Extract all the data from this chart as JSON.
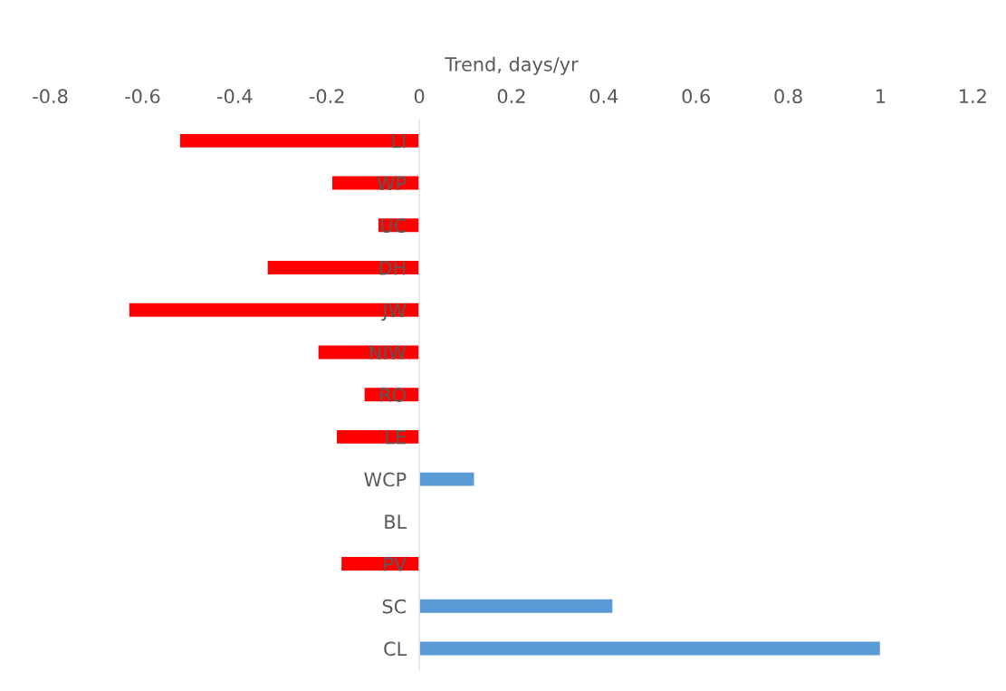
{
  "chart_data": {
    "type": "bar",
    "orientation": "horizontal",
    "xlabel": "Trend, days/yr",
    "categories": [
      "LI",
      "WP",
      "UC",
      "DH",
      "JW",
      "NIW",
      "RO",
      "LE",
      "WCP",
      "BL",
      "PV",
      "SC",
      "CL"
    ],
    "values": [
      -0.52,
      -0.19,
      -0.09,
      -0.33,
      -0.63,
      -0.22,
      -0.12,
      -0.18,
      0.12,
      0,
      -0.17,
      0.42,
      1.0
    ],
    "colors": [
      "#ff0000",
      "#ff0000",
      "#ff0000",
      "#ff0000",
      "#ff0000",
      "#ff0000",
      "#ff0000",
      "#ff0000",
      "#5b9bd5",
      null,
      "#ff0000",
      "#5b9bd5",
      "#5b9bd5"
    ],
    "xlim": [
      -0.8,
      1.2
    ],
    "xticks": [
      -0.8,
      -0.6,
      -0.4,
      -0.2,
      0,
      0.2,
      0.4,
      0.6,
      0.8,
      1,
      1.2
    ],
    "grid": false,
    "legend": false
  }
}
